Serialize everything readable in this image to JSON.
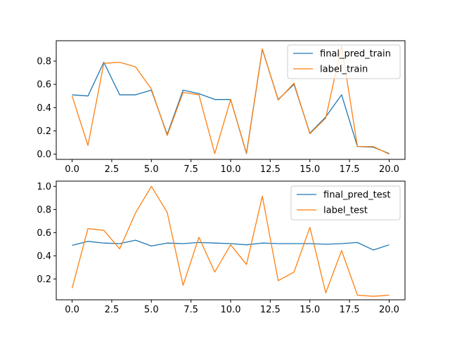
{
  "chart_data": [
    {
      "type": "line",
      "title": "",
      "xlabel": "",
      "ylabel": "",
      "xlim": [
        -1,
        21
      ],
      "ylim": [
        -0.045,
        0.975
      ],
      "xticks": [
        0,
        2.5,
        5,
        7.5,
        10,
        12.5,
        15,
        17.5,
        20
      ],
      "xtick_labels": [
        "0.0",
        "2.5",
        "5.0",
        "7.5",
        "10.0",
        "12.5",
        "15.0",
        "17.5",
        "20.0"
      ],
      "yticks": [
        0,
        0.2,
        0.4,
        0.6,
        0.8
      ],
      "ytick_labels": [
        "0.0",
        "0.2",
        "0.4",
        "0.6",
        "0.8"
      ],
      "legend": "upper right",
      "grid": false,
      "x": [
        0,
        1,
        2,
        3,
        4,
        5,
        6,
        7,
        8,
        9,
        10,
        11,
        12,
        13,
        14,
        15,
        16,
        17,
        18,
        19,
        20
      ],
      "series": [
        {
          "name": "final_pred_train",
          "color": "#1f77b4",
          "values": [
            0.51,
            0.5,
            0.79,
            0.51,
            0.51,
            0.55,
            0.17,
            0.55,
            0.52,
            0.47,
            0.47,
            0.005,
            0.9,
            0.47,
            0.6,
            0.18,
            0.32,
            0.51,
            0.065,
            0.06,
            0.005
          ]
        },
        {
          "name": "label_train",
          "color": "#ff7f0e",
          "values": [
            0.5,
            0.075,
            0.78,
            0.79,
            0.75,
            0.56,
            0.16,
            0.53,
            0.51,
            0.005,
            0.47,
            0.01,
            0.905,
            0.465,
            0.61,
            0.175,
            0.31,
            0.93,
            0.065,
            0.065,
            0.0
          ]
        }
      ]
    },
    {
      "type": "line",
      "title": "",
      "xlabel": "",
      "ylabel": "",
      "xlim": [
        -1,
        21
      ],
      "ylim": [
        0.02,
        1.045
      ],
      "xticks": [
        0,
        2.5,
        5,
        7.5,
        10,
        12.5,
        15,
        17.5,
        20
      ],
      "xtick_labels": [
        "0.0",
        "2.5",
        "5.0",
        "7.5",
        "10.0",
        "12.5",
        "15.0",
        "17.5",
        "20.0"
      ],
      "yticks": [
        0.2,
        0.4,
        0.6,
        0.8,
        1.0
      ],
      "ytick_labels": [
        "0.2",
        "0.4",
        "0.6",
        "0.8",
        "1.0"
      ],
      "legend": "upper right",
      "grid": false,
      "x": [
        0,
        1,
        2,
        3,
        4,
        5,
        6,
        7,
        8,
        9,
        10,
        11,
        12,
        13,
        14,
        15,
        16,
        17,
        18,
        19,
        20
      ],
      "series": [
        {
          "name": "final_pred_test",
          "color": "#1f77b4",
          "values": [
            0.49,
            0.525,
            0.51,
            0.505,
            0.535,
            0.485,
            0.51,
            0.505,
            0.515,
            0.51,
            0.505,
            0.495,
            0.51,
            0.505,
            0.505,
            0.505,
            0.5,
            0.505,
            0.515,
            0.45,
            0.495
          ]
        },
        {
          "name": "label_test",
          "color": "#ff7f0e",
          "values": [
            0.12,
            0.635,
            0.62,
            0.46,
            0.77,
            1.0,
            0.775,
            0.145,
            0.56,
            0.26,
            0.495,
            0.325,
            0.915,
            0.185,
            0.26,
            0.645,
            0.08,
            0.445,
            0.06,
            0.05,
            0.06
          ]
        }
      ]
    }
  ]
}
